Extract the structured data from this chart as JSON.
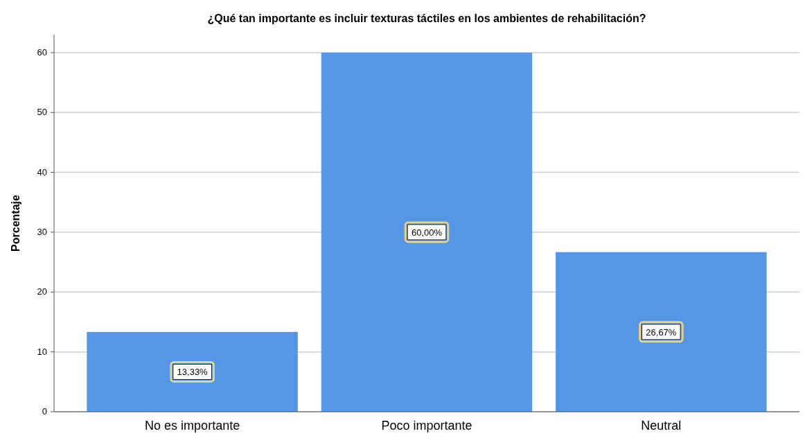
{
  "chart_data": {
    "type": "bar",
    "title": "¿Qué tan importante es incluir texturas táctiles en los ambientes de rehabilitación?",
    "ylabel": "Porcentaje",
    "categories": [
      "No es importante",
      "Poco importante",
      "Neutral"
    ],
    "values": [
      13.33,
      60.0,
      26.67
    ],
    "value_labels": [
      "13,33%",
      "60,00%",
      "26,67%"
    ],
    "color": "#5596e6",
    "ylim": [
      0,
      63
    ],
    "yticks": [
      0,
      10,
      20,
      30,
      40,
      50,
      60
    ],
    "grid": "y"
  }
}
